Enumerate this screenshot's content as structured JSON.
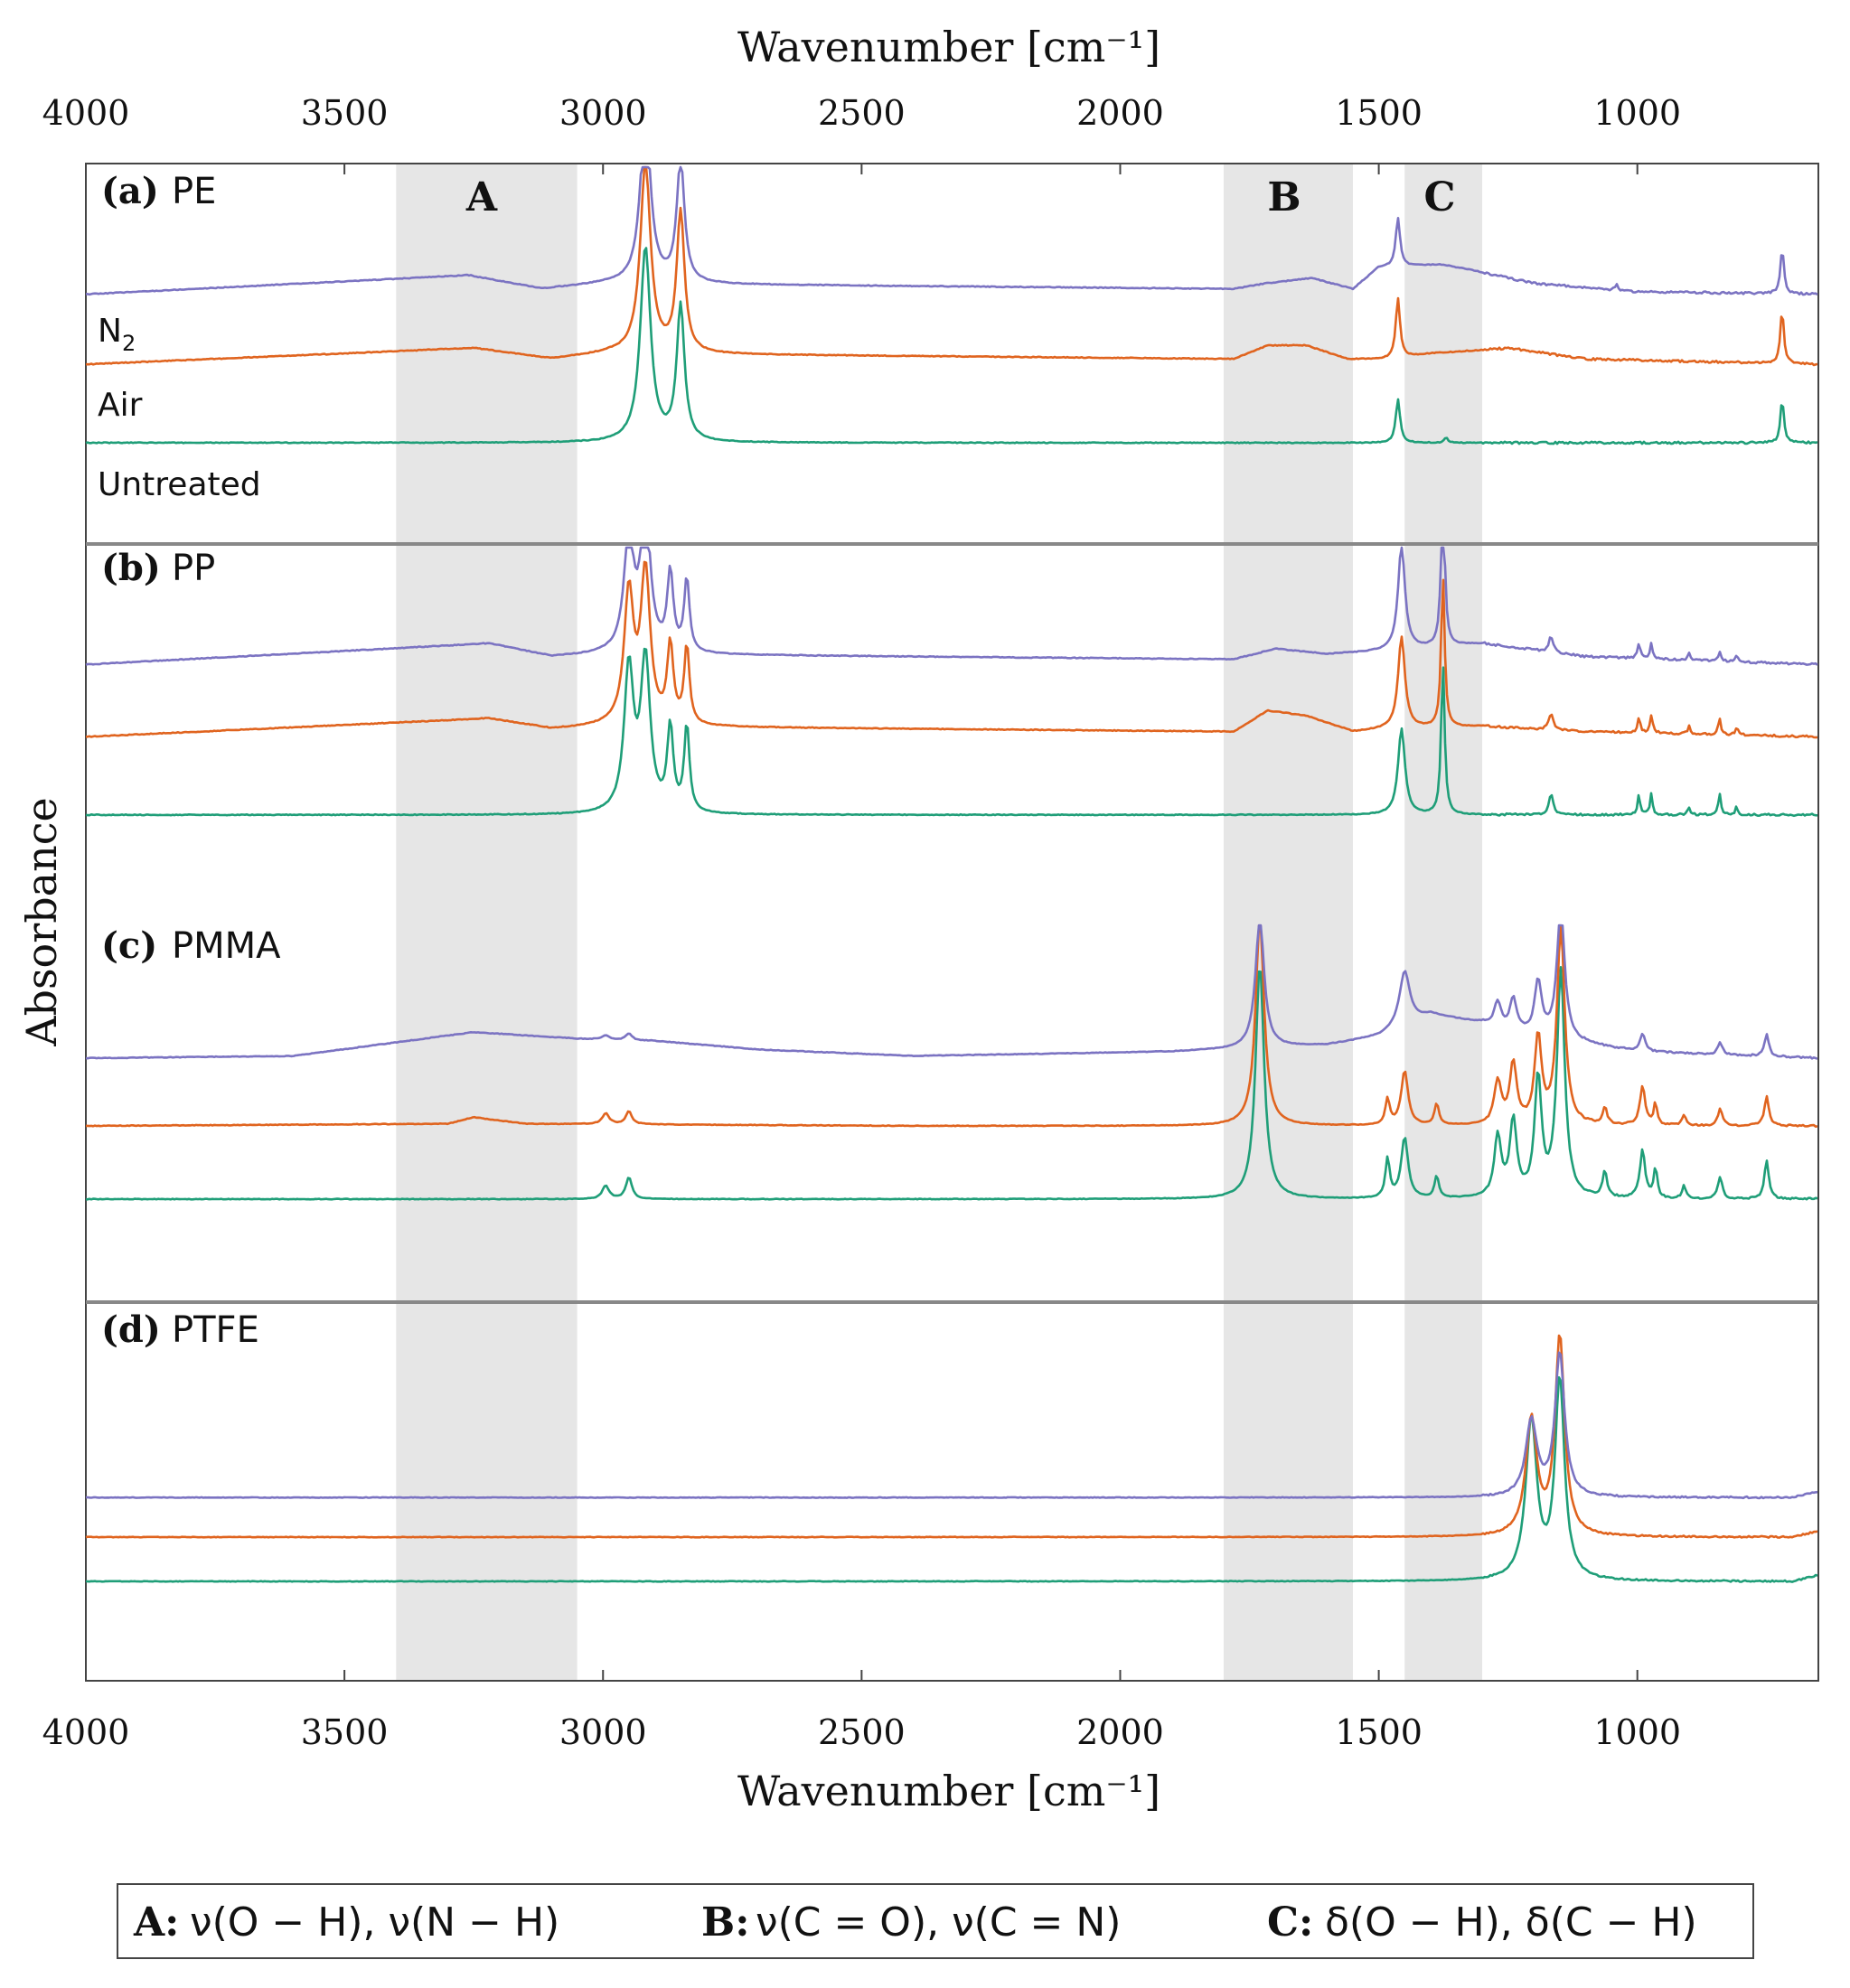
{
  "chart_data": {
    "type": "line",
    "figure_kind": "FTIR absorbance spectra, stacked panels",
    "xlabel_top": "Wavenumber [cm⁻¹]",
    "xlabel_bottom": "Wavenumber [cm⁻¹]",
    "ylabel": "Absorbance",
    "xlim": [
      4000,
      650
    ],
    "x_ticks": [
      4000,
      3500,
      3000,
      2500,
      2000,
      1500,
      1000
    ],
    "x_tick_labels": [
      "4000",
      "3500",
      "3000",
      "2500",
      "2000",
      "1500",
      "1000"
    ],
    "series_colors": {
      "N2": "#7b73c2",
      "Air": "#e0641f",
      "Untreated": "#1f9e78"
    },
    "shaded_regions": [
      {
        "letter": "A",
        "range": [
          3400,
          3050
        ],
        "color": "#e6e6e6"
      },
      {
        "letter": "B",
        "range": [
          1800,
          1550
        ],
        "color": "#e6e6e6"
      },
      {
        "letter": "C",
        "range": [
          1450,
          1300
        ],
        "color": "#e6e6e6"
      }
    ],
    "trace_label_parts": {
      "n2_main": "N",
      "n2_sub": "2",
      "air": "Air",
      "untreated": "Untreated"
    },
    "panels": [
      {
        "label_letter": "(a)",
        "label_name": "PE",
        "traces": [
          {
            "name": "N2",
            "baseline": 0.25,
            "bg": [
              [
                4000,
                0
              ],
              [
                3260,
                0.07
              ],
              [
                3120,
                0.02
              ],
              [
                2990,
                0.04
              ],
              [
                1780,
                0.02
              ],
              [
                1720,
                0.04
              ],
              [
                1630,
                0.06
              ],
              [
                1550,
                0.02
              ],
              [
                1500,
                0.1
              ],
              [
                1380,
                0.11
              ],
              [
                1320,
                0.09
              ],
              [
                1200,
                0.04
              ],
              [
                1000,
                0.01
              ],
              [
                650,
                0
              ]
            ],
            "peaks": [
              [
                2918,
                12,
                0.62
              ],
              [
                2850,
                9,
                0.45
              ],
              [
                1463,
                5,
                0.18
              ],
              [
                1040,
                3,
                0.02
              ],
              [
                720,
                4,
                0.17
              ]
            ]
          },
          {
            "name": "Air",
            "baseline": 0.0,
            "bg": [
              [
                4000,
                0
              ],
              [
                3250,
                0.06
              ],
              [
                3100,
                0.02
              ],
              [
                2990,
                0.04
              ],
              [
                1780,
                0.02
              ],
              [
                1715,
                0.07
              ],
              [
                1640,
                0.07
              ],
              [
                1560,
                0.02
              ],
              [
                1480,
                0.02
              ],
              [
                1400,
                0.04
              ],
              [
                1250,
                0.06
              ],
              [
                1100,
                0.02
              ],
              [
                650,
                0
              ]
            ],
            "peaks": [
              [
                2918,
                12,
                0.7
              ],
              [
                2850,
                9,
                0.52
              ],
              [
                1463,
                5,
                0.22
              ],
              [
                720,
                4,
                0.2
              ]
            ]
          },
          {
            "name": "Untreated",
            "baseline": -0.28,
            "bg": [
              [
                4000,
                0
              ],
              [
                650,
                0
              ]
            ],
            "peaks": [
              [
                2918,
                12,
                0.72
              ],
              [
                2850,
                9,
                0.5
              ],
              [
                1463,
                5,
                0.16
              ],
              [
                1370,
                4,
                0.02
              ],
              [
                720,
                4,
                0.16
              ]
            ]
          }
        ]
      },
      {
        "label_letter": "(b)",
        "label_name": "PP",
        "traces": [
          {
            "name": "N2",
            "baseline": 0.25,
            "bg": [
              [
                4000,
                0
              ],
              [
                3220,
                0.08
              ],
              [
                3100,
                0.03
              ],
              [
                2990,
                0.04
              ],
              [
                1780,
                0.02
              ],
              [
                1700,
                0.06
              ],
              [
                1600,
                0.04
              ],
              [
                1500,
                0.05
              ],
              [
                1300,
                0.08
              ],
              [
                1100,
                0.03
              ],
              [
                650,
                0
              ]
            ],
            "peaks": [
              [
                2950,
                11,
                0.45
              ],
              [
                2918,
                11,
                0.55
              ],
              [
                2870,
                7,
                0.3
              ],
              [
                2838,
                6,
                0.28
              ],
              [
                1456,
                8,
                0.4
              ],
              [
                1376,
                4,
                0.65
              ],
              [
                1167,
                5,
                0.06
              ],
              [
                997,
                3,
                0.06
              ],
              [
                973,
                3,
                0.06
              ],
              [
                900,
                3,
                0.03
              ],
              [
                841,
                3,
                0.04
              ],
              [
                808,
                3,
                0.02
              ]
            ]
          },
          {
            "name": "Air",
            "baseline": 0.0,
            "bg": [
              [
                4000,
                0
              ],
              [
                3220,
                0.07
              ],
              [
                3100,
                0.03
              ],
              [
                2990,
                0.04
              ],
              [
                1780,
                0.02
              ],
              [
                1715,
                0.1
              ],
              [
                1640,
                0.08
              ],
              [
                1550,
                0.02
              ],
              [
                1480,
                0.03
              ],
              [
                1300,
                0.04
              ],
              [
                1100,
                0.02
              ],
              [
                650,
                0
              ]
            ],
            "peaks": [
              [
                2950,
                11,
                0.5
              ],
              [
                2918,
                11,
                0.58
              ],
              [
                2870,
                7,
                0.3
              ],
              [
                2838,
                6,
                0.3
              ],
              [
                1456,
                8,
                0.35
              ],
              [
                1376,
                4,
                0.58
              ],
              [
                1167,
                5,
                0.06
              ],
              [
                997,
                3,
                0.06
              ],
              [
                973,
                3,
                0.07
              ],
              [
                900,
                3,
                0.03
              ],
              [
                841,
                3,
                0.06
              ],
              [
                808,
                3,
                0.03
              ]
            ]
          },
          {
            "name": "Untreated",
            "baseline": -0.27,
            "bg": [
              [
                4000,
                0
              ],
              [
                650,
                0
              ]
            ],
            "peaks": [
              [
                2950,
                11,
                0.55
              ],
              [
                2918,
                11,
                0.58
              ],
              [
                2870,
                7,
                0.32
              ],
              [
                2838,
                6,
                0.33
              ],
              [
                1456,
                8,
                0.33
              ],
              [
                1376,
                4,
                0.58
              ],
              [
                1167,
                5,
                0.08
              ],
              [
                997,
                3,
                0.08
              ],
              [
                973,
                3,
                0.08
              ],
              [
                900,
                3,
                0.03
              ],
              [
                841,
                3,
                0.08
              ],
              [
                808,
                3,
                0.03
              ]
            ]
          }
        ]
      },
      {
        "label_letter": "(c)",
        "label_name": "PMMA",
        "traces": [
          {
            "name": "N2",
            "baseline": 0.25,
            "bg": [
              [
                4000,
                0
              ],
              [
                3600,
                0.01
              ],
              [
                3250,
                0.12
              ],
              [
                3050,
                0.09
              ],
              [
                2900,
                0.08
              ],
              [
                2700,
                0.04
              ],
              [
                2400,
                0.01
              ],
              [
                1900,
                0.03
              ],
              [
                1600,
                0.06
              ],
              [
                1500,
                0.1
              ],
              [
                1400,
                0.2
              ],
              [
                1300,
                0.16
              ],
              [
                1250,
                0.12
              ],
              [
                1000,
                0.03
              ],
              [
                650,
                0
              ]
            ],
            "peaks": [
              [
                2995,
                8,
                0.02
              ],
              [
                2950,
                7,
                0.03
              ],
              [
                1730,
                10,
                0.6
              ],
              [
                1450,
                12,
                0.25
              ],
              [
                1270,
                8,
                0.12
              ],
              [
                1240,
                8,
                0.15
              ],
              [
                1192,
                8,
                0.25
              ],
              [
                1148,
                9,
                0.6
              ],
              [
                990,
                6,
                0.08
              ],
              [
                840,
                5,
                0.06
              ],
              [
                750,
                5,
                0.1
              ]
            ]
          },
          {
            "name": "Air",
            "baseline": 0.0,
            "bg": [
              [
                4000,
                0
              ],
              [
                3300,
                0.01
              ],
              [
                3250,
                0.04
              ],
              [
                3150,
                0.01
              ],
              [
                2400,
                0
              ],
              [
                650,
                0
              ]
            ],
            "peaks": [
              [
                2995,
                8,
                0.05
              ],
              [
                2950,
                7,
                0.06
              ],
              [
                1730,
                10,
                0.95
              ],
              [
                1483,
                5,
                0.12
              ],
              [
                1450,
                8,
                0.25
              ],
              [
                1388,
                5,
                0.1
              ],
              [
                1270,
                8,
                0.2
              ],
              [
                1240,
                8,
                0.28
              ],
              [
                1192,
                8,
                0.4
              ],
              [
                1148,
                9,
                0.9
              ],
              [
                1063,
                5,
                0.08
              ],
              [
                990,
                6,
                0.18
              ],
              [
                965,
                4,
                0.1
              ],
              [
                910,
                4,
                0.05
              ],
              [
                840,
                5,
                0.08
              ],
              [
                750,
                5,
                0.14
              ]
            ]
          },
          {
            "name": "Untreated",
            "baseline": -0.27,
            "bg": [
              [
                4000,
                0
              ],
              [
                650,
                0
              ]
            ],
            "peaks": [
              [
                2995,
                8,
                0.06
              ],
              [
                2950,
                7,
                0.1
              ],
              [
                1730,
                10,
                1.08
              ],
              [
                1483,
                5,
                0.18
              ],
              [
                1450,
                8,
                0.28
              ],
              [
                1388,
                5,
                0.1
              ],
              [
                1270,
                8,
                0.28
              ],
              [
                1240,
                8,
                0.35
              ],
              [
                1192,
                8,
                0.55
              ],
              [
                1148,
                9,
                1.05
              ],
              [
                1063,
                5,
                0.12
              ],
              [
                990,
                6,
                0.22
              ],
              [
                965,
                4,
                0.14
              ],
              [
                910,
                4,
                0.06
              ],
              [
                840,
                5,
                0.1
              ],
              [
                750,
                5,
                0.18
              ]
            ]
          }
        ]
      },
      {
        "label_letter": "(d)",
        "label_name": "PTFE",
        "traces": [
          {
            "name": "N2",
            "baseline": 0.25,
            "bg": [
              [
                4000,
                0
              ],
              [
                700,
                0
              ],
              [
                650,
                0.03
              ]
            ],
            "peaks": [
              [
                1205,
                13,
                0.38
              ],
              [
                1150,
                11,
                0.72
              ]
            ]
          },
          {
            "name": "Air",
            "baseline": 0.0,
            "bg": [
              [
                4000,
                0
              ],
              [
                700,
                0
              ],
              [
                650,
                0.03
              ]
            ],
            "peaks": [
              [
                1205,
                13,
                0.58
              ],
              [
                1150,
                11,
                1.0
              ]
            ]
          },
          {
            "name": "Untreated",
            "baseline": -0.28,
            "bg": [
              [
                4000,
                0
              ],
              [
                700,
                0
              ],
              [
                650,
                0.03
              ]
            ],
            "peaks": [
              [
                1205,
                13,
                0.8
              ],
              [
                1150,
                11,
                1.0
              ]
            ]
          }
        ]
      }
    ],
    "legend": [
      {
        "key": "A:",
        "value": "ν(O − H), ν(N − H)"
      },
      {
        "key": "B:",
        "value": "ν(C = O), ν(C = N)"
      },
      {
        "key": "C:",
        "value": "δ(O − H), δ(C − H)"
      }
    ]
  }
}
